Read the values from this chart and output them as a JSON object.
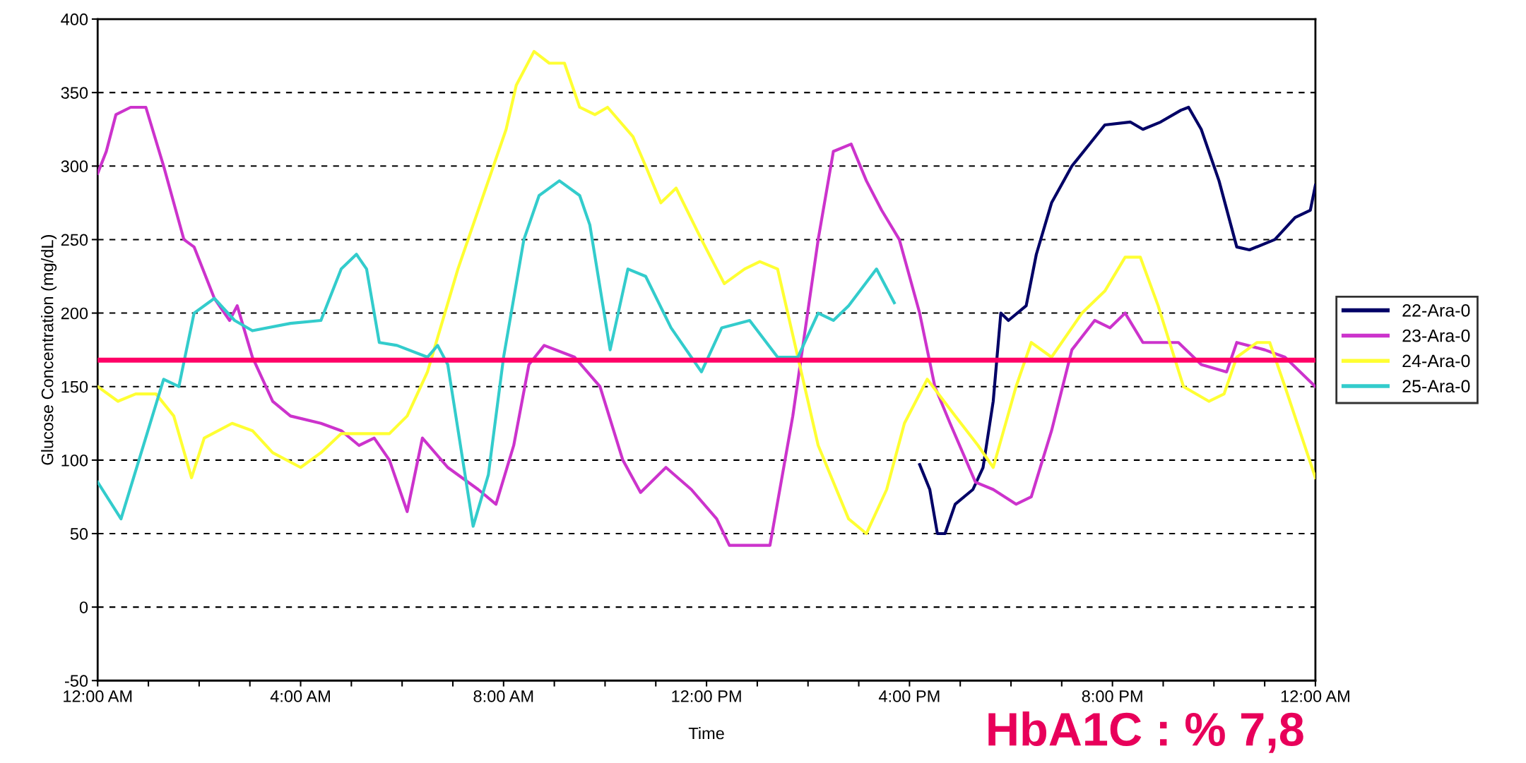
{
  "chart_data": {
    "type": "line",
    "xlabel": "Time",
    "ylabel": "Glucose Concentration (mg/dL)",
    "xlim": [
      0,
      24
    ],
    "ylim": [
      -50,
      400
    ],
    "xticks": [
      {
        "value": 0,
        "label": "12:00 AM"
      },
      {
        "value": 1,
        "label": null
      },
      {
        "value": 2,
        "label": null
      },
      {
        "value": 3,
        "label": null
      },
      {
        "value": 4,
        "label": "4:00 AM"
      },
      {
        "value": 5,
        "label": null
      },
      {
        "value": 6,
        "label": null
      },
      {
        "value": 7,
        "label": null
      },
      {
        "value": 8,
        "label": "8:00 AM"
      },
      {
        "value": 9,
        "label": null
      },
      {
        "value": 10,
        "label": null
      },
      {
        "value": 11,
        "label": null
      },
      {
        "value": 12,
        "label": "12:00 PM"
      },
      {
        "value": 13,
        "label": null
      },
      {
        "value": 14,
        "label": null
      },
      {
        "value": 15,
        "label": null
      },
      {
        "value": 16,
        "label": "4:00 PM"
      },
      {
        "value": 17,
        "label": null
      },
      {
        "value": 18,
        "label": null
      },
      {
        "value": 19,
        "label": null
      },
      {
        "value": 20,
        "label": "8:00 PM"
      },
      {
        "value": 21,
        "label": null
      },
      {
        "value": 22,
        "label": null
      },
      {
        "value": 23,
        "label": null
      },
      {
        "value": 24,
        "label": "12:00 AM"
      }
    ],
    "yticks": [
      -50,
      0,
      50,
      100,
      150,
      200,
      250,
      300,
      350,
      400
    ],
    "grid": "y",
    "legend": "right",
    "marker": "none",
    "line_style": "solid",
    "ref_lines": [
      {
        "axis": "y",
        "value": 168,
        "color": "#ff0066"
      }
    ],
    "annotations": [
      "HbA1C : % 7,8"
    ],
    "series": [
      {
        "name": "22-Ara-0",
        "color": "#000066",
        "x": [
          16.2,
          16.4,
          16.55,
          16.7,
          16.9,
          17.25,
          17.45,
          17.65,
          17.8,
          17.95,
          18.3,
          18.5,
          18.8,
          19.2,
          19.55,
          19.85,
          20.35,
          20.6,
          20.95,
          21.35,
          21.5,
          21.75,
          22.1,
          22.45,
          22.7,
          23.2,
          23.6,
          23.9,
          24
        ],
        "values": [
          97,
          80,
          50,
          50,
          70,
          80,
          95,
          140,
          200,
          195,
          205,
          240,
          275,
          300,
          315,
          328,
          330,
          325,
          330,
          338,
          340,
          325,
          290,
          245,
          243,
          250,
          265,
          270,
          287
        ]
      },
      {
        "name": "23-Ara-0",
        "color": "#cc33cc",
        "x": [
          0,
          0.17,
          0.36,
          0.65,
          0.95,
          1.3,
          1.7,
          1.9,
          2.3,
          2.6,
          2.75,
          3.05,
          3.45,
          3.8,
          4.4,
          4.8,
          5.15,
          5.45,
          5.75,
          6.1,
          6.4,
          6.9,
          7.5,
          7.85,
          8.2,
          8.5,
          8.8,
          9.4,
          9.9,
          10.35,
          10.7,
          11.2,
          11.7,
          12.2,
          12.45,
          13.25,
          13.7,
          14.2,
          14.5,
          14.85,
          15.15,
          15.45,
          15.8,
          16.2,
          16.5,
          16.8,
          17.3,
          17.65,
          18.1,
          18.4,
          18.8,
          19.2,
          19.65,
          19.95,
          20.25,
          20.6,
          21.3,
          21.75,
          22.25,
          22.45,
          23.0,
          23.4,
          24
        ],
        "values": [
          295,
          310,
          335,
          340,
          340,
          300,
          250,
          245,
          210,
          195,
          205,
          170,
          140,
          130,
          125,
          120,
          110,
          115,
          100,
          65,
          115,
          95,
          80,
          70,
          110,
          165,
          178,
          170,
          150,
          100,
          78,
          95,
          80,
          60,
          42,
          42,
          130,
          250,
          310,
          315,
          290,
          270,
          250,
          200,
          150,
          125,
          85,
          80,
          70,
          75,
          120,
          175,
          195,
          190,
          200,
          180,
          180,
          165,
          160,
          180,
          175,
          170,
          150
        ]
      },
      {
        "name": "24-Ara-0",
        "color": "#ffff33",
        "x": [
          0,
          0.4,
          0.75,
          1.15,
          1.5,
          1.85,
          2.1,
          2.65,
          3.05,
          3.45,
          4.0,
          4.4,
          4.8,
          5.75,
          6.1,
          6.5,
          7.1,
          7.65,
          8.05,
          8.25,
          8.6,
          8.9,
          9.2,
          9.5,
          9.8,
          10.05,
          10.55,
          10.8,
          11.1,
          11.4,
          11.9,
          12.35,
          12.75,
          13.05,
          13.4,
          13.7,
          14.2,
          14.8,
          15.15,
          15.55,
          15.9,
          16.35,
          16.9,
          17.35,
          17.65,
          18.1,
          18.4,
          18.8,
          19.4,
          19.85,
          20.25,
          20.55,
          20.9,
          21.4,
          21.9,
          22.2,
          22.45,
          22.85,
          23.1,
          23.4,
          24
        ],
        "values": [
          150,
          140,
          145,
          145,
          130,
          88,
          115,
          125,
          120,
          105,
          95,
          105,
          118,
          118,
          130,
          160,
          230,
          285,
          325,
          355,
          378,
          370,
          370,
          340,
          335,
          340,
          320,
          300,
          275,
          285,
          250,
          220,
          230,
          235,
          230,
          185,
          110,
          60,
          50,
          80,
          125,
          155,
          130,
          110,
          95,
          150,
          180,
          170,
          200,
          215,
          238,
          238,
          205,
          150,
          140,
          145,
          170,
          180,
          180,
          150,
          88
        ]
      },
      {
        "name": "25-Ara-0",
        "color": "#33cccc",
        "x": [
          0,
          0.46,
          1.3,
          1.6,
          1.9,
          2.3,
          2.7,
          3.05,
          3.8,
          4.4,
          4.8,
          5.1,
          5.3,
          5.55,
          5.9,
          6.5,
          6.7,
          6.9,
          7.4,
          7.7,
          8.0,
          8.4,
          8.7,
          9.1,
          9.5,
          9.7,
          10.1,
          10.45,
          10.8,
          11.3,
          11.9,
          12.3,
          12.85,
          13.4,
          13.8,
          14.2,
          14.5,
          14.8,
          15.35,
          15.7
        ],
        "values": [
          85,
          60,
          155,
          150,
          200,
          210,
          195,
          188,
          193,
          195,
          230,
          240,
          230,
          180,
          178,
          170,
          178,
          165,
          55,
          90,
          170,
          250,
          280,
          290,
          280,
          260,
          175,
          230,
          225,
          190,
          160,
          190,
          195,
          170,
          170,
          200,
          195,
          205,
          230,
          207
        ]
      }
    ]
  }
}
